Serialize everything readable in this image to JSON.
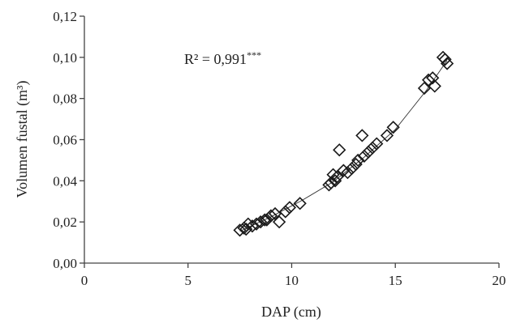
{
  "chart_data": {
    "type": "scatter",
    "title": "",
    "xlabel": "DAP (cm)",
    "ylabel": "Volumen fustal (m³)",
    "xlim": [
      0,
      20
    ],
    "ylim": [
      0,
      0.12
    ],
    "x_ticks": [
      0,
      5,
      10,
      15,
      20
    ],
    "x_tick_labels": [
      "0",
      "5",
      "10",
      "15",
      "20"
    ],
    "y_ticks": [
      0,
      0.02,
      0.04,
      0.06,
      0.08,
      0.1,
      0.12
    ],
    "y_tick_labels": [
      "0,00",
      "0,02",
      "0,04",
      "0,06",
      "0,08",
      "0,10",
      "0,12"
    ],
    "grid": false,
    "legend": "none",
    "marker": "diamond",
    "annotation": {
      "base": "R² = 0,991",
      "significance": "***"
    },
    "points": [
      {
        "x": 7.5,
        "y": 0.016
      },
      {
        "x": 7.7,
        "y": 0.017
      },
      {
        "x": 7.8,
        "y": 0.0165
      },
      {
        "x": 7.9,
        "y": 0.019
      },
      {
        "x": 8.1,
        "y": 0.018
      },
      {
        "x": 8.3,
        "y": 0.019
      },
      {
        "x": 8.5,
        "y": 0.02
      },
      {
        "x": 8.7,
        "y": 0.021
      },
      {
        "x": 8.8,
        "y": 0.021
      },
      {
        "x": 9.0,
        "y": 0.023
      },
      {
        "x": 9.2,
        "y": 0.024
      },
      {
        "x": 9.4,
        "y": 0.02
      },
      {
        "x": 9.7,
        "y": 0.025
      },
      {
        "x": 9.9,
        "y": 0.027
      },
      {
        "x": 10.4,
        "y": 0.029
      },
      {
        "x": 11.8,
        "y": 0.038
      },
      {
        "x": 11.9,
        "y": 0.039
      },
      {
        "x": 12.0,
        "y": 0.043
      },
      {
        "x": 12.1,
        "y": 0.04
      },
      {
        "x": 12.2,
        "y": 0.042
      },
      {
        "x": 12.3,
        "y": 0.055
      },
      {
        "x": 12.5,
        "y": 0.045
      },
      {
        "x": 12.7,
        "y": 0.044
      },
      {
        "x": 12.9,
        "y": 0.046
      },
      {
        "x": 13.1,
        "y": 0.048
      },
      {
        "x": 13.2,
        "y": 0.05
      },
      {
        "x": 13.4,
        "y": 0.062
      },
      {
        "x": 13.5,
        "y": 0.052
      },
      {
        "x": 13.7,
        "y": 0.054
      },
      {
        "x": 13.9,
        "y": 0.056
      },
      {
        "x": 14.1,
        "y": 0.058
      },
      {
        "x": 14.6,
        "y": 0.062
      },
      {
        "x": 14.9,
        "y": 0.066
      },
      {
        "x": 16.4,
        "y": 0.085
      },
      {
        "x": 16.6,
        "y": 0.089
      },
      {
        "x": 16.8,
        "y": 0.09
      },
      {
        "x": 16.9,
        "y": 0.086
      },
      {
        "x": 17.3,
        "y": 0.1
      },
      {
        "x": 17.4,
        "y": 0.099
      },
      {
        "x": 17.5,
        "y": 0.097
      }
    ],
    "trendline": {
      "type": "power",
      "points": [
        {
          "x": 7.5,
          "y": 0.0155
        },
        {
          "x": 9,
          "y": 0.0225
        },
        {
          "x": 10.5,
          "y": 0.0305
        },
        {
          "x": 12,
          "y": 0.0395
        },
        {
          "x": 13.5,
          "y": 0.0515
        },
        {
          "x": 15,
          "y": 0.065
        },
        {
          "x": 16.5,
          "y": 0.084
        },
        {
          "x": 17.5,
          "y": 0.0985
        }
      ]
    }
  }
}
